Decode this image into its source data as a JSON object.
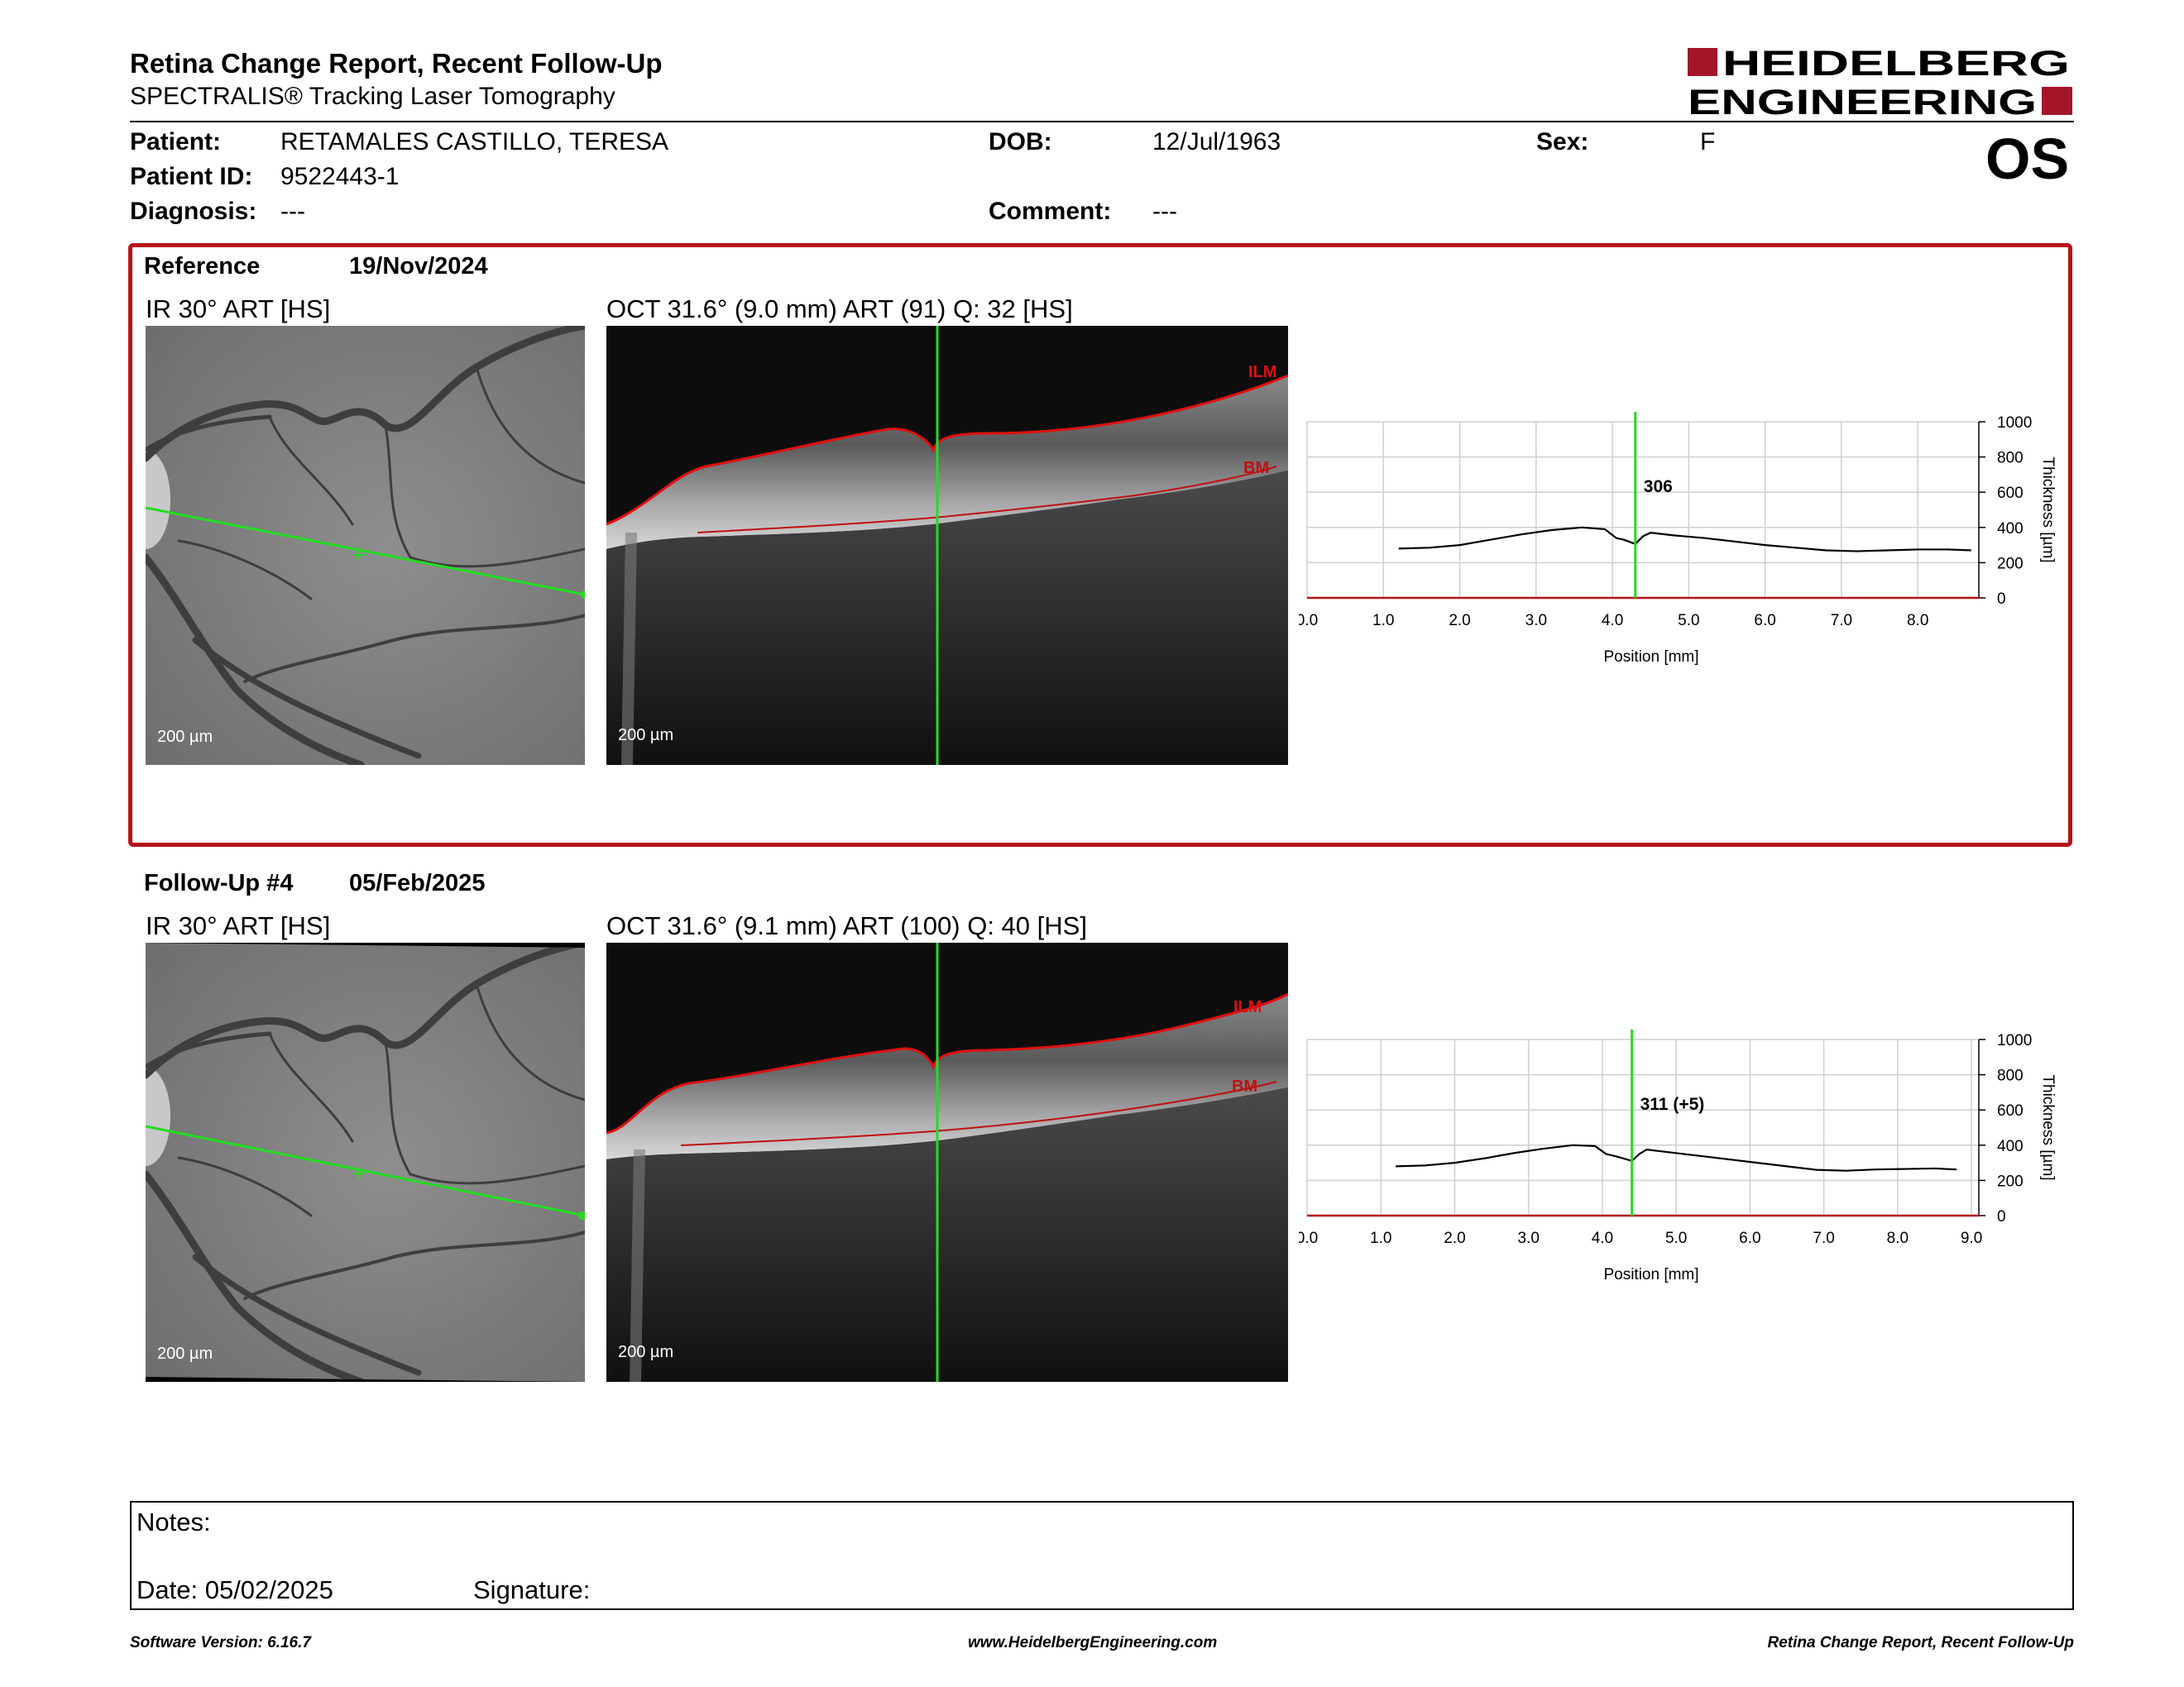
{
  "header": {
    "title": "Retina Change Report, Recent Follow-Up",
    "subtitle": "SPECTRALIS® Tracking Laser Tomography",
    "logo_line1": "HEIDELBERG",
    "logo_line2": "ENGINEERING",
    "eye": "OS"
  },
  "patient": {
    "name_label": "Patient:",
    "name": "RETAMALES CASTILLO, TERESA",
    "id_label": "Patient ID:",
    "id": "9522443-1",
    "diagnosis_label": "Diagnosis:",
    "diagnosis": "---",
    "dob_label": "DOB:",
    "dob": "12/Jul/1963",
    "comment_label": "Comment:",
    "comment": "---",
    "sex_label": "Sex:",
    "sex": "F"
  },
  "reference": {
    "label": "Reference",
    "date": "19/Nov/2024",
    "ir_title": "IR 30° ART [HS]",
    "oct_title": "OCT 31.6° (9.0 mm) ART (91) Q: 32 [HS]",
    "ir_scale": "200 µm",
    "oct_scale": "200 µm",
    "ilm_label": "ILM",
    "bm_label": "BM"
  },
  "followup": {
    "label": "Follow-Up #4",
    "date": "05/Feb/2025",
    "ir_title": "IR 30° ART [HS]",
    "oct_title": "OCT 31.6° (9.1 mm) ART (100) Q: 40 [HS]",
    "ir_scale": "200 µm",
    "oct_scale": "200 µm",
    "ilm_label": "ILM",
    "bm_label": "BM"
  },
  "chart_data": [
    {
      "type": "line",
      "xlabel": "Position [mm]",
      "ylabel": "Thickness [µm]",
      "xlim": [
        0,
        8.8
      ],
      "ylim": [
        0,
        1000
      ],
      "x_ticks": [
        "0.0",
        "1.0",
        "2.0",
        "3.0",
        "4.0",
        "5.0",
        "6.0",
        "7.0",
        "8.0"
      ],
      "y_ticks": [
        "0",
        "200",
        "400",
        "600",
        "800",
        "1000"
      ],
      "marker_x": 4.3,
      "marker_label": "306",
      "x": [
        1.2,
        1.6,
        2.0,
        2.4,
        2.8,
        3.2,
        3.6,
        3.9,
        4.05,
        4.15,
        4.3,
        4.4,
        4.5,
        4.8,
        5.2,
        5.6,
        6.0,
        6.4,
        6.8,
        7.2,
        7.6,
        8.0,
        8.4,
        8.7
      ],
      "y": [
        280,
        285,
        300,
        330,
        360,
        385,
        400,
        390,
        340,
        330,
        306,
        350,
        370,
        355,
        340,
        320,
        300,
        285,
        270,
        265,
        270,
        275,
        275,
        270
      ]
    },
    {
      "type": "line",
      "xlabel": "Position [mm]",
      "ylabel": "Thickness [µm]",
      "xlim": [
        0,
        9.1
      ],
      "ylim": [
        0,
        1000
      ],
      "x_ticks": [
        "0.0",
        "1.0",
        "2.0",
        "3.0",
        "4.0",
        "5.0",
        "6.0",
        "7.0",
        "8.0",
        "9.0"
      ],
      "y_ticks": [
        "0",
        "200",
        "400",
        "600",
        "800",
        "1000"
      ],
      "marker_x": 4.4,
      "marker_label": "311 (+5)",
      "x": [
        1.2,
        1.6,
        2.0,
        2.4,
        2.8,
        3.2,
        3.6,
        3.9,
        4.05,
        4.2,
        4.4,
        4.5,
        4.6,
        4.9,
        5.3,
        5.7,
        6.1,
        6.5,
        6.9,
        7.3,
        7.7,
        8.1,
        8.5,
        8.8
      ],
      "y": [
        280,
        285,
        300,
        325,
        355,
        380,
        400,
        395,
        350,
        335,
        311,
        350,
        375,
        360,
        340,
        320,
        300,
        280,
        260,
        255,
        262,
        265,
        268,
        262
      ]
    }
  ],
  "notes": {
    "label": "Notes:",
    "date_label": "Date: 05/02/2025",
    "signature_label": "Signature:"
  },
  "footer": {
    "left": "Software Version: 6.16.7",
    "center": "www.HeidelbergEngineering.com",
    "right": "Retina Change Report, Recent Follow-Up"
  },
  "colors": {
    "accent": "#b5121b",
    "scan_line": "#22dd22"
  }
}
